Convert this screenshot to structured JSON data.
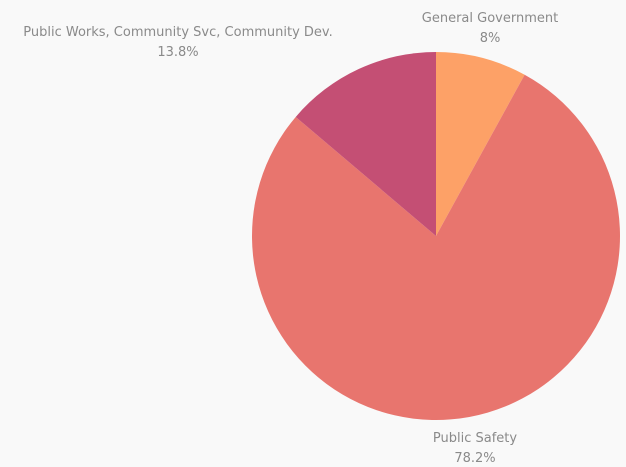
{
  "chart_data": {
    "type": "pie",
    "start_angle_deg": 0,
    "direction": "clockwise",
    "slices": [
      {
        "label": "General Government",
        "value": 8.0,
        "value_label": "8%",
        "color": "#fda167"
      },
      {
        "label": "Public Safety",
        "value": 78.2,
        "value_label": "78.2%",
        "color": "#e8756e"
      },
      {
        "label": "Public Works, Community Svc, Community Dev.",
        "value": 13.8,
        "value_label": "13.8%",
        "color": "#c44f74"
      }
    ],
    "label_placement": "outside",
    "legend": "none"
  }
}
